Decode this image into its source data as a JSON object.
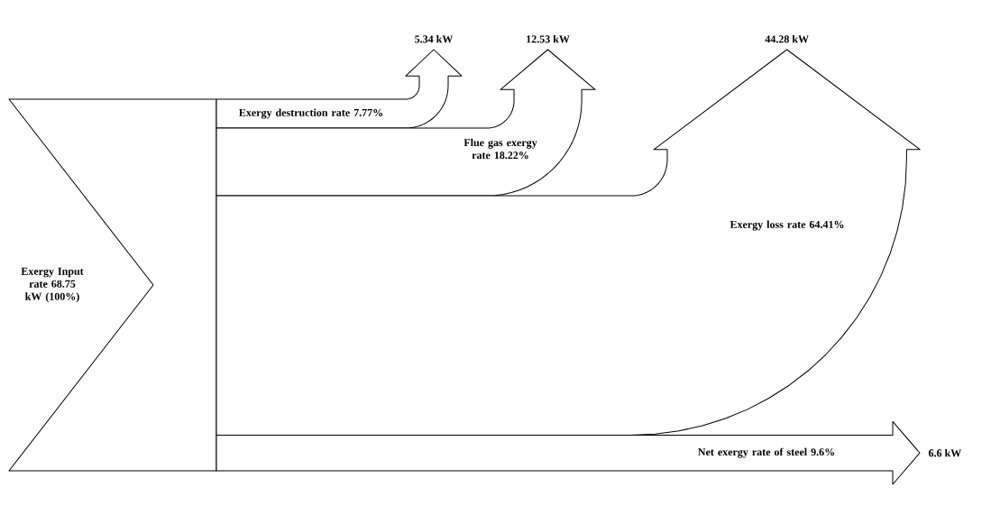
{
  "chart_data": {
    "type": "other",
    "categories": [
      "Exergy destruction rate 7.77%",
      "Flue gas exergy rate 18.22%",
      "Exergy loss rate 64.41%",
      "Net exergy rate of steel 9.6%"
    ],
    "values": [
      5.34,
      12.53,
      44.28,
      6.6
    ],
    "value_labels": [
      "5.34 kW",
      "12.53 kW",
      "44.28 kW",
      "6.6 kW"
    ],
    "annotations": [
      "Exergy Input rate 68.75 kW (100%)"
    ]
  }
}
